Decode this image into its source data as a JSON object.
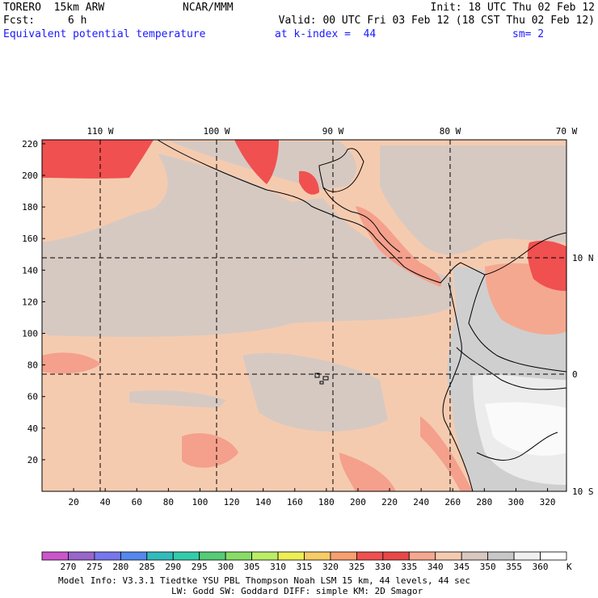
{
  "header": {
    "model": "TORERO  15km ARW",
    "center": "NCAR/MMM",
    "init": "Init: 18 UTC Thu 02 Feb 12",
    "fcst_label": "Fcst:",
    "fcst_value": "6 h",
    "valid": "Valid: 00 UTC Fri 03 Feb 12 (18 CST Thu 02 Feb 12)",
    "field": "Equivalent potential temperature",
    "level": "at k-index =  44",
    "smooth": "sm= 2"
  },
  "map": {
    "lon_labels": [
      "110 W",
      "100 W",
      "90 W",
      "80 W",
      "70 W"
    ],
    "lat_labels": [
      "10 N",
      "0",
      "10 S"
    ],
    "y_ticks": [
      "20",
      "40",
      "60",
      "80",
      "100",
      "120",
      "140",
      "160",
      "180",
      "200",
      "220"
    ],
    "x_ticks": [
      "20",
      "40",
      "60",
      "80",
      "100",
      "120",
      "140",
      "160",
      "180",
      "200",
      "220",
      "240",
      "260",
      "280",
      "300",
      "320"
    ]
  },
  "colorbar": {
    "labels": [
      "270",
      "275",
      "280",
      "285",
      "290",
      "295",
      "300",
      "305",
      "310",
      "315",
      "320",
      "325",
      "330",
      "335",
      "340",
      "345",
      "350",
      "355",
      "360"
    ],
    "unit": "K",
    "colors": [
      "#cc55cc",
      "#9966cc",
      "#7777ee",
      "#5588ee",
      "#33bbbb",
      "#33ccaa",
      "#55cc77",
      "#88dd66",
      "#bbee66",
      "#eeee55",
      "#f8cc66",
      "#f8a070",
      "#f05050",
      "#e84848",
      "#f5a890",
      "#f5cbb0",
      "#d8c8c0",
      "#c8c8c8",
      "#f0f0f0",
      "#ffffff"
    ]
  },
  "footer": {
    "line1": "Model Info: V3.3.1   Tiedtke YSU PBL  Thompson    Noah LSM  15 km,   44 levels,   44 sec",
    "line2": "LW: Godd SW: Goddard DIFF: simple KM: 2D Smagor"
  }
}
